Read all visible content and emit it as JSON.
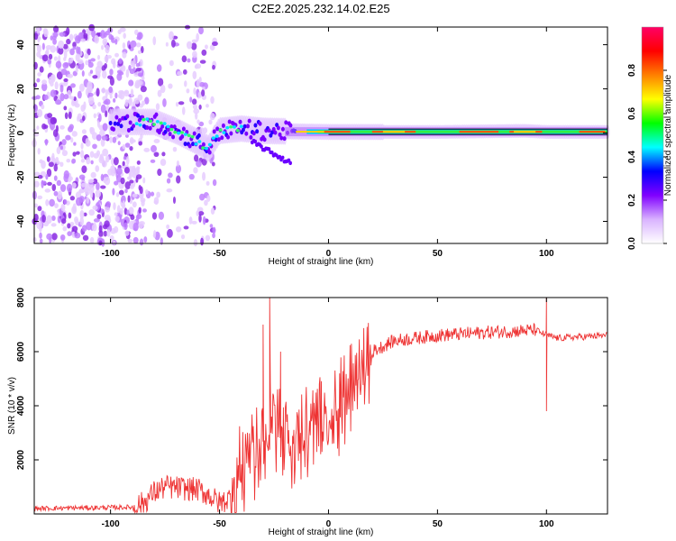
{
  "title": "C2E2.2025.232.14.02.E25",
  "chart_data": [
    {
      "type": "heatmap",
      "xlabel": "Height of straight line (km)",
      "ylabel": "Frequency (Hz)",
      "xlim": [
        -135,
        128
      ],
      "ylim": [
        -50,
        48
      ],
      "x_ticks": [
        -100,
        -50,
        0,
        50,
        100
      ],
      "x_tick_labels": [
        "-100",
        "-50",
        "0",
        "50",
        "100"
      ],
      "y_ticks": [
        -40,
        -20,
        0,
        20,
        40
      ],
      "y_tick_labels": [
        "-40",
        "-20",
        "0",
        "20",
        "40"
      ],
      "colorbar": {
        "label": "Normalized spectral amplitude",
        "range": [
          0,
          1
        ],
        "ticks": [
          0.0,
          0.2,
          0.4,
          0.6,
          0.8
        ],
        "tick_labels": [
          "0.0",
          "0.2",
          "0.4",
          "0.6",
          "0.8"
        ],
        "colors": [
          "#ffffff",
          "#d9b3ff",
          "#8000ff",
          "#0000ff",
          "#00ffff",
          "#00ff00",
          "#ffff00",
          "#ff8000",
          "#ff0000",
          "#ff0066"
        ]
      },
      "ridge": {
        "description_x": [
          -95,
          -80,
          -70,
          -60,
          -55,
          -50,
          -40,
          -30,
          -20,
          0,
          50,
          90,
          100,
          128
        ],
        "frequency": [
          5,
          5,
          1,
          -4,
          -7,
          1,
          2,
          1,
          0.8,
          0.5,
          0.5,
          1,
          0.5,
          0.5
        ]
      }
    },
    {
      "type": "line",
      "xlabel": "Height of straight line (km)",
      "ylabel": "SNR (10 * v/v)",
      "xlim": [
        -135,
        128
      ],
      "ylim": [
        0,
        8000
      ],
      "x_ticks": [
        -100,
        -50,
        0,
        50,
        100
      ],
      "x_tick_labels": [
        "-100",
        "-50",
        "0",
        "50",
        "100"
      ],
      "y_ticks": [
        2000,
        4000,
        6000,
        8000
      ],
      "y_tick_labels": [
        "2000",
        "4000",
        "6000",
        "8000"
      ],
      "series_color": "#ee3333",
      "envelope_x": [
        -135,
        -90,
        -85,
        -80,
        -75,
        -60,
        -55,
        -50,
        -45,
        -40,
        -30,
        -25,
        -20,
        -10,
        0,
        10,
        20,
        30,
        50,
        70,
        95,
        100,
        105,
        128
      ],
      "envelope_y": [
        200,
        250,
        400,
        800,
        1000,
        900,
        700,
        400,
        600,
        2200,
        3200,
        3800,
        3000,
        3500,
        4000,
        5000,
        6000,
        6400,
        6600,
        6700,
        6800,
        6600,
        6500,
        6600
      ],
      "spikes": [
        {
          "x": -27,
          "y": 8000
        },
        {
          "x": -30,
          "y": 7000
        },
        {
          "x": -22,
          "y": 6000
        },
        {
          "x": 100,
          "y": 8000
        },
        {
          "x": 100,
          "y": 3800
        }
      ]
    }
  ]
}
